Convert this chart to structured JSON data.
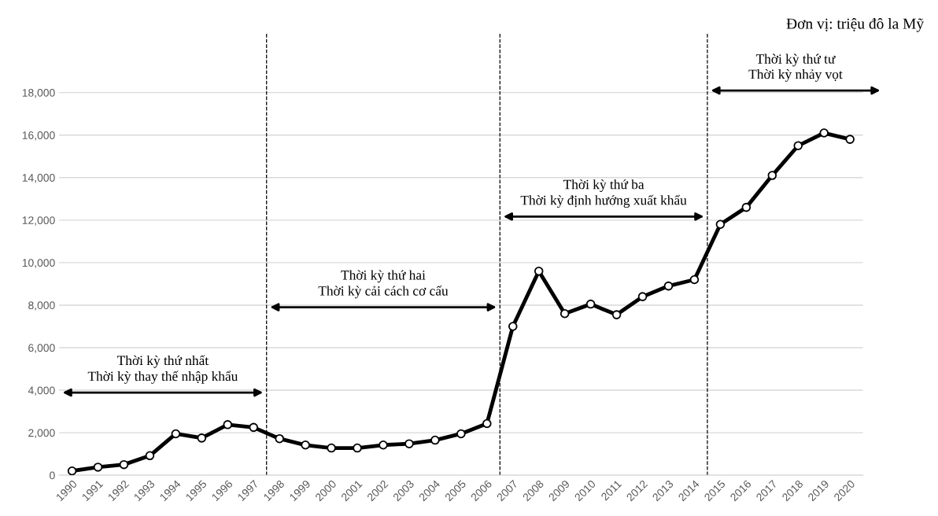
{
  "chart_data": {
    "type": "line",
    "x": [
      1990,
      1991,
      1992,
      1993,
      1994,
      1995,
      1996,
      1997,
      1998,
      1999,
      2000,
      2001,
      2002,
      2003,
      2004,
      2005,
      2006,
      2007,
      2008,
      2009,
      2010,
      2011,
      2012,
      2013,
      2014,
      2015,
      2016,
      2017,
      2018,
      2019,
      2020
    ],
    "series": [
      {
        "color": "#000000",
        "values": [
          200,
          380,
          500,
          920,
          1950,
          1750,
          2380,
          2250,
          1720,
          1420,
          1280,
          1280,
          1420,
          1480,
          1650,
          1950,
          2430,
          7000,
          9600,
          7600,
          8050,
          7550,
          8400,
          8900,
          9200,
          11800,
          12600,
          14100,
          15500,
          16100,
          15800
        ]
      }
    ],
    "xlim": [
      1989.5,
      2020.5
    ],
    "xticks": [
      1990,
      1991,
      1992,
      1993,
      1994,
      1995,
      1996,
      1997,
      1998,
      1999,
      2000,
      2001,
      2002,
      2003,
      2004,
      2005,
      2006,
      2007,
      2008,
      2009,
      2010,
      2011,
      2012,
      2013,
      2014,
      2015,
      2016,
      2017,
      2018,
      2019,
      2020
    ],
    "ylim": [
      0,
      20800
    ],
    "yticks": [
      {
        "value": 0,
        "label": "0"
      },
      {
        "value": 2000,
        "label": "2,000"
      },
      {
        "value": 4000,
        "label": "4,000"
      },
      {
        "value": 6000,
        "label": "6,000"
      },
      {
        "value": 8000,
        "label": "8,000"
      },
      {
        "value": 10000,
        "label": "10,000"
      },
      {
        "value": 12000,
        "label": "12,000"
      },
      {
        "value": 14000,
        "label": "14,000"
      },
      {
        "value": 16000,
        "label": "16,000"
      },
      {
        "value": 18000,
        "label": "18,000"
      }
    ],
    "grid": "y",
    "marker": "circle",
    "line_style": "solid",
    "ref_lines": [
      {
        "axis": "x",
        "value": 1997.5,
        "color": "#000000",
        "line_style": "dashed"
      },
      {
        "axis": "x",
        "value": 2006.5,
        "color": "#000000",
        "line_style": "dashed"
      },
      {
        "axis": "x",
        "value": 2014.5,
        "color": "#000000",
        "line_style": "dashed"
      }
    ],
    "annotations": [
      "Đơn vị: triệu đô la Mỹ",
      "Thời kỳ thứ nhất\nThời kỳ thay thế nhập khẩu",
      "Thời kỳ thứ hai\nThời kỳ cải cách cơ cấu",
      "Thời kỳ thứ ba\nThời kỳ định hướng xuất khẩu",
      "Thời kỳ thứ tư\nThời kỳ nhảy vọt"
    ]
  }
}
